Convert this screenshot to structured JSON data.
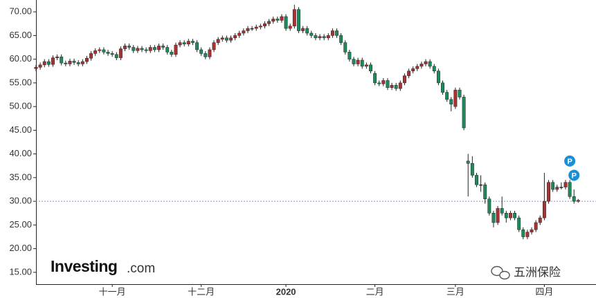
{
  "chart_data": {
    "type": "candlestick",
    "categories": [
      null,
      null,
      null,
      null,
      null,
      null,
      null,
      null,
      null,
      null,
      null,
      null,
      null,
      null,
      null,
      null,
      null,
      null,
      "十一月",
      null,
      null,
      null,
      null,
      null,
      null,
      null,
      null,
      null,
      null,
      null,
      null,
      null,
      null,
      null,
      null,
      null,
      null,
      null,
      null,
      "十二月",
      null,
      null,
      null,
      null,
      null,
      null,
      null,
      null,
      null,
      null,
      null,
      null,
      null,
      null,
      null,
      null,
      null,
      null,
      null,
      "2020",
      null,
      null,
      null,
      null,
      null,
      null,
      null,
      null,
      null,
      null,
      null,
      null,
      null,
      null,
      null,
      null,
      null,
      null,
      null,
      null,
      "二月",
      null,
      null,
      null,
      null,
      null,
      null,
      null,
      null,
      null,
      null,
      null,
      null,
      null,
      null,
      null,
      null,
      null,
      null,
      "三月",
      null,
      null,
      null,
      null,
      null,
      null,
      null,
      null,
      null,
      null,
      null,
      null,
      null,
      null,
      null,
      null,
      null,
      null,
      null,
      null,
      "四月",
      null,
      null,
      null,
      null,
      null,
      null,
      null,
      null
    ],
    "open": [
      58.0,
      58.3,
      58.8,
      59.5,
      58.9,
      60.3,
      60.5,
      59.2,
      59.0,
      59.6,
      59.3,
      59.0,
      59.5,
      60.2,
      61.2,
      61.8,
      62.0,
      61.5,
      61.2,
      61.0,
      60.3,
      62.2,
      62.8,
      62.5,
      61.8,
      62.3,
      62.0,
      61.8,
      62.5,
      62.0,
      62.8,
      62.5,
      61.5,
      61.0,
      63.0,
      63.5,
      63.2,
      63.8,
      63.5,
      62.0,
      61.2,
      60.5,
      62.0,
      63.5,
      64.2,
      64.5,
      64.0,
      64.5,
      65.0,
      65.5,
      66.0,
      66.5,
      66.5,
      66.8,
      67.0,
      67.5,
      68.0,
      68.5,
      68.2,
      69.0,
      66.5,
      67.0,
      70.5,
      66.0,
      66.5,
      65.5,
      65.0,
      64.5,
      64.8,
      64.5,
      65.0,
      66.0,
      65.0,
      63.5,
      61.5,
      60.0,
      59.0,
      59.8,
      58.5,
      58.8,
      57.0,
      55.0,
      54.8,
      55.5,
      54.0,
      54.5,
      53.8,
      55.0,
      56.5,
      57.5,
      58.0,
      58.5,
      59.0,
      59.5,
      58.5,
      57.5,
      55.0,
      53.0,
      51.5,
      50.0,
      53.5,
      52.0,
      38.5,
      38.0,
      35.5,
      33.5,
      33.5,
      30.5,
      27.5,
      25.5,
      28.5,
      27.5,
      26.5,
      27.5,
      26.5,
      24.0,
      22.5,
      23.5,
      24.0,
      25.5,
      26.5,
      30.0,
      34.0,
      32.5,
      33.0,
      33.0,
      34.0,
      31.0,
      30.0
    ],
    "high": [
      58.8,
      59.3,
      60.0,
      60.0,
      60.8,
      61.0,
      61.0,
      59.7,
      60.1,
      60.1,
      59.8,
      60.0,
      60.7,
      61.7,
      62.3,
      62.5,
      62.5,
      62.0,
      61.7,
      61.5,
      62.7,
      63.3,
      63.3,
      63.0,
      62.8,
      62.8,
      62.5,
      63.0,
      63.0,
      63.3,
      63.3,
      63.0,
      62.0,
      63.5,
      64.0,
      64.0,
      64.3,
      64.3,
      64.0,
      62.5,
      61.7,
      62.5,
      64.0,
      64.7,
      65.0,
      65.0,
      65.0,
      65.5,
      66.0,
      66.5,
      67.0,
      67.0,
      67.3,
      67.5,
      68.0,
      68.5,
      69.0,
      69.0,
      69.5,
      69.5,
      67.5,
      71.5,
      71.0,
      67.0,
      67.0,
      66.0,
      65.5,
      65.3,
      65.3,
      65.5,
      66.5,
      66.5,
      65.5,
      64.0,
      62.0,
      60.5,
      60.3,
      60.3,
      59.3,
      59.3,
      57.5,
      55.5,
      56.0,
      56.0,
      55.0,
      55.0,
      55.5,
      57.0,
      58.0,
      58.5,
      59.0,
      59.5,
      60.0,
      60.0,
      59.0,
      58.0,
      55.5,
      53.5,
      52.0,
      54.0,
      54.0,
      52.5,
      40.0,
      39.5,
      36.0,
      35.5,
      34.0,
      31.0,
      28.0,
      29.0,
      31.0,
      28.0,
      28.0,
      28.0,
      27.0,
      24.5,
      24.0,
      24.5,
      26.0,
      27.0,
      36.0,
      34.5,
      34.5,
      33.5,
      34.0,
      34.5,
      34.5,
      32.5,
      30.5
    ],
    "low": [
      57.5,
      57.8,
      58.3,
      58.4,
      58.4,
      59.8,
      58.7,
      58.5,
      58.5,
      58.8,
      58.5,
      58.5,
      59.0,
      59.7,
      60.7,
      61.3,
      61.0,
      60.7,
      60.5,
      59.8,
      59.8,
      61.7,
      62.0,
      61.3,
      61.3,
      61.5,
      61.3,
      61.3,
      61.5,
      61.5,
      62.0,
      61.0,
      60.5,
      60.5,
      62.5,
      62.7,
      62.7,
      63.0,
      61.5,
      60.7,
      60.0,
      60.0,
      61.5,
      63.0,
      63.7,
      63.5,
      63.5,
      64.0,
      64.5,
      65.0,
      65.5,
      66.0,
      66.0,
      66.3,
      66.5,
      67.0,
      67.5,
      67.7,
      67.7,
      66.0,
      66.0,
      66.5,
      65.5,
      65.5,
      65.0,
      64.5,
      64.0,
      64.0,
      64.0,
      64.0,
      64.5,
      64.5,
      63.0,
      61.0,
      59.5,
      58.5,
      58.5,
      58.0,
      58.0,
      57.0,
      54.5,
      54.3,
      54.3,
      53.5,
      53.5,
      53.3,
      53.3,
      54.5,
      56.0,
      57.0,
      57.5,
      58.0,
      58.5,
      58.0,
      57.0,
      54.5,
      52.5,
      51.0,
      49.0,
      49.5,
      51.5,
      45.0,
      31.0,
      35.0,
      33.0,
      32.0,
      29.5,
      27.0,
      24.5,
      25.0,
      27.0,
      25.5,
      26.0,
      26.0,
      23.5,
      22.0,
      22.0,
      23.0,
      23.5,
      25.0,
      26.0,
      29.5,
      32.0,
      32.0,
      32.5,
      32.5,
      30.5,
      29.5,
      29.7
    ],
    "close": [
      58.3,
      58.8,
      59.5,
      58.9,
      60.3,
      60.5,
      59.2,
      59.0,
      59.6,
      59.3,
      59.0,
      59.5,
      60.2,
      61.2,
      61.8,
      62.0,
      61.5,
      61.2,
      61.0,
      60.3,
      62.2,
      62.8,
      62.5,
      61.8,
      62.3,
      62.0,
      61.8,
      62.5,
      62.0,
      62.8,
      62.5,
      61.5,
      61.0,
      63.0,
      63.5,
      63.2,
      63.8,
      63.5,
      62.0,
      61.2,
      60.5,
      62.0,
      63.5,
      64.2,
      64.5,
      64.0,
      64.5,
      65.0,
      65.5,
      66.0,
      66.5,
      66.5,
      66.8,
      67.0,
      67.5,
      68.0,
      68.5,
      68.2,
      69.0,
      66.5,
      67.0,
      70.5,
      66.0,
      66.5,
      65.5,
      65.0,
      64.5,
      64.8,
      64.5,
      65.0,
      66.0,
      65.0,
      63.5,
      61.5,
      60.0,
      59.0,
      59.8,
      58.5,
      58.8,
      57.5,
      55.0,
      54.8,
      55.5,
      54.0,
      54.5,
      53.8,
      55.0,
      56.5,
      57.5,
      58.0,
      58.5,
      59.0,
      59.5,
      58.5,
      57.5,
      55.0,
      53.0,
      51.5,
      50.5,
      53.5,
      52.0,
      45.5,
      38.0,
      35.5,
      33.5,
      33.5,
      30.5,
      27.5,
      25.5,
      28.5,
      27.5,
      26.5,
      27.5,
      26.5,
      24.0,
      22.5,
      23.5,
      24.0,
      25.5,
      26.5,
      30.0,
      34.0,
      32.5,
      33.0,
      33.0,
      34.0,
      31.0,
      30.0,
      30.2
    ],
    "up_color": "#a83232",
    "down_color": "#1e8a5c",
    "ylim": [
      12.5,
      72.5
    ],
    "yticks": [
      {
        "value": 15,
        "label": "15.00"
      },
      {
        "value": 20,
        "label": "20.00"
      },
      {
        "value": 25,
        "label": "25.00"
      },
      {
        "value": 30,
        "label": "30.00"
      },
      {
        "value": 35,
        "label": "35.00"
      },
      {
        "value": 40,
        "label": "40.00"
      },
      {
        "value": 45,
        "label": "45.00"
      },
      {
        "value": 50,
        "label": "50.00"
      },
      {
        "value": 55,
        "label": "55.00"
      },
      {
        "value": 60,
        "label": "60.00"
      },
      {
        "value": 65,
        "label": "65.00"
      },
      {
        "value": 70,
        "label": "70.00"
      }
    ],
    "ref_line": 30,
    "flags": [
      {
        "label": "P",
        "index": 126,
        "value": 38.5
      },
      {
        "label": "P",
        "index": 127,
        "value": 35.5
      }
    ],
    "logo": {
      "brand": "Investing",
      "suffix": ".com"
    },
    "watermark": "五洲保险"
  }
}
